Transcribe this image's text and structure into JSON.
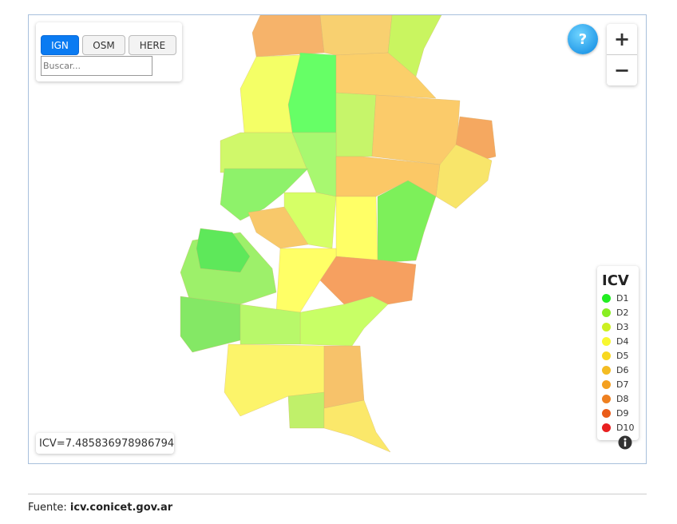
{
  "layers": {
    "buttons": [
      "IGN",
      "OSM",
      "HERE"
    ],
    "active": 0
  },
  "search": {
    "placeholder": "Buscar..."
  },
  "help": "?",
  "zoom": {
    "in": "+",
    "out": "−"
  },
  "legend": {
    "title": "ICV",
    "entries": [
      {
        "label": "D1",
        "color": "#22ee22"
      },
      {
        "label": "D2",
        "color": "#88ee22"
      },
      {
        "label": "D3",
        "color": "#ccf022"
      },
      {
        "label": "D4",
        "color": "#f8f830"
      },
      {
        "label": "D5",
        "color": "#f8d820"
      },
      {
        "label": "D6",
        "color": "#f4bc22"
      },
      {
        "label": "D7",
        "color": "#f4a020"
      },
      {
        "label": "D8",
        "color": "#ee8020"
      },
      {
        "label": "D9",
        "color": "#ea5c18"
      },
      {
        "label": "D10",
        "color": "#e82020"
      }
    ]
  },
  "info": "ICV=7.485836978986794",
  "footer": {
    "prefix": "Fuente:",
    "source": "icv.conicet.gov.ar"
  }
}
